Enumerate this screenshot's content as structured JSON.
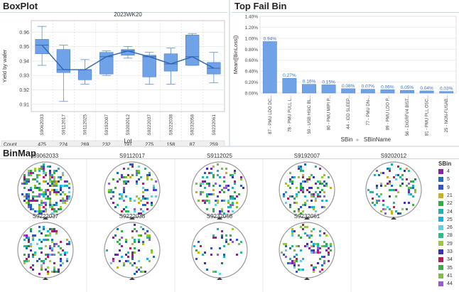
{
  "boxplot": {
    "title": "BoxPlot",
    "chart_data": {
      "type": "box",
      "title": "2023WK20",
      "ylabel": "Yield by wafer",
      "xlabel": "Lot",
      "ylim": [
        0.905,
        0.968
      ],
      "yticks": [
        0.91,
        0.92,
        0.93,
        0.94,
        0.95,
        0.96
      ],
      "count_label": "Count",
      "categories": [
        "S9062033",
        "S9112017",
        "S9112025",
        "S9192007",
        "S9202012",
        "S9222037",
        "S9222038",
        "S9232058",
        "S9232061"
      ],
      "counts": [
        475,
        224,
        269,
        232,
        191,
        275,
        158,
        87,
        259
      ],
      "boxes": [
        {
          "min": 0.937,
          "q1": 0.945,
          "median": 0.951,
          "q3": 0.955,
          "max": 0.964
        },
        {
          "min": 0.912,
          "q1": 0.932,
          "median": 0.934,
          "q3": 0.948,
          "max": 0.951
        },
        {
          "min": 0.924,
          "q1": 0.927,
          "median": 0.934,
          "q3": 0.934,
          "max": 0.941
        },
        {
          "min": 0.93,
          "q1": 0.931,
          "median": 0.943,
          "q3": 0.946,
          "max": 0.947
        },
        {
          "min": 0.942,
          "q1": 0.944,
          "median": 0.947,
          "q3": 0.948,
          "max": 0.95
        },
        {
          "min": 0.924,
          "q1": 0.929,
          "median": 0.943,
          "q3": 0.944,
          "max": 0.946
        },
        {
          "min": 0.924,
          "q1": 0.933,
          "median": 0.938,
          "q3": 0.945,
          "max": 0.949
        },
        {
          "min": 0.937,
          "q1": 0.937,
          "median": 0.943,
          "q3": 0.958,
          "max": 0.959
        },
        {
          "min": 0.925,
          "q1": 0.931,
          "median": 0.935,
          "q3": 0.939,
          "max": 0.946
        }
      ]
    }
  },
  "topfail": {
    "title": "Top Fail Bin",
    "chart_data": {
      "type": "bar",
      "ylabel": "Mean([BinLoss])",
      "xlabel": "SBin",
      "xlabel2": "SBinName",
      "ylim": [
        0,
        1.4
      ],
      "yticks": [
        "0.00%",
        "0.20%",
        "0.40%",
        "0.60%",
        "0.80%",
        "1.00%",
        "1.20%",
        "1.40%"
      ],
      "categories": [
        {
          "bin": "87",
          "name": "PMU LDO DC..."
        },
        {
          "bin": "78",
          "name": "PMU PULL L..."
        },
        {
          "bin": "59",
          "name": "USB HSIC BL..."
        },
        {
          "bin": "80",
          "name": "PMU MIPI P..."
        },
        {
          "bin": "44",
          "name": "IDD SLEEP..."
        },
        {
          "bin": "77",
          "name": "PMU DN-..."
        },
        {
          "bin": "89",
          "name": "PMU LDO P..."
        },
        {
          "bin": "56",
          "name": "DIGRFV4 BIST..."
        },
        {
          "bin": "81",
          "name": "PMU PLL OSC..."
        },
        {
          "bin": "25",
          "name": "NON-FUSAB..."
        }
      ],
      "values": [
        0.94,
        0.27,
        0.16,
        0.15,
        0.08,
        0.07,
        0.06,
        0.05,
        0.04,
        0.03
      ],
      "labels": [
        "0.94%",
        "0.27%",
        "0.16%",
        "0.15%",
        "0.08%",
        "0.07%",
        "0.06%",
        "0.05%",
        "0.04%",
        "0.03%"
      ]
    }
  },
  "binmap": {
    "title": "BinMap",
    "wafers": [
      "S9062033",
      "S9112017",
      "S9112025",
      "S9192007",
      "S9202012",
      "S9222037",
      "S9222038",
      "S9232058",
      "S9232061"
    ],
    "legend_title": "SBin",
    "legend": [
      {
        "label": "4",
        "color": "#8b1fa8"
      },
      {
        "label": "5",
        "color": "#1f6fbf"
      },
      {
        "label": "9",
        "color": "#2f55c9"
      },
      {
        "label": "21",
        "color": "#c7b21a"
      },
      {
        "label": "22",
        "color": "#2ab33b"
      },
      {
        "label": "24",
        "color": "#1fb3b3"
      },
      {
        "label": "25",
        "color": "#13b3e0"
      },
      {
        "label": "26",
        "color": "#5fd0e8"
      },
      {
        "label": "28",
        "color": "#22c08a"
      },
      {
        "label": "29",
        "color": "#9acd32"
      },
      {
        "label": "33",
        "color": "#3a2fbf"
      },
      {
        "label": "34",
        "color": "#c0185a"
      },
      {
        "label": "35",
        "color": "#3cb043"
      },
      {
        "label": "41",
        "color": "#7cc242"
      },
      {
        "label": "44",
        "color": "#9b59d0"
      }
    ]
  }
}
